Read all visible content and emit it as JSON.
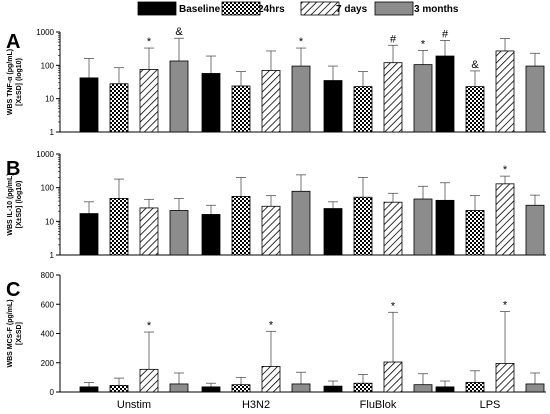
{
  "legend": [
    {
      "label": "Baseline",
      "pattern": "solid-black"
    },
    {
      "label": "24hrs",
      "pattern": "checker"
    },
    {
      "label": "7 days",
      "pattern": "hatch"
    },
    {
      "label": "3 months",
      "pattern": "solid-gray"
    }
  ],
  "colors": {
    "baseline": "#000000",
    "three_months": "#8c8c8c",
    "hatch": "#000000",
    "checker": "#000000"
  },
  "chart_data": [
    {
      "panel": "A",
      "type": "bar",
      "ylabel_lines": [
        "WBS TNF-α (pg/mL)",
        "[X±SD] (log10)"
      ],
      "yscale": "log",
      "ylim": [
        1,
        1000
      ],
      "yticks": [
        "1",
        "10",
        "100",
        "1000"
      ],
      "categories": [
        "Unstim",
        "H3N2",
        "FluBlok",
        "LPS"
      ],
      "series": [
        {
          "name": "Baseline",
          "values": [
            42,
            57,
            35,
            190
          ],
          "errors": [
            160,
            190,
            95,
            560
          ]
        },
        {
          "name": "24hrs",
          "values": [
            28,
            24,
            23,
            23
          ],
          "errors": [
            85,
            65,
            65,
            68
          ]
        },
        {
          "name": "7 days",
          "values": [
            75,
            70,
            120,
            270
          ],
          "errors": [
            330,
            270,
            400,
            640
          ]
        },
        {
          "name": "3 months",
          "values": [
            135,
            95,
            105,
            95
          ],
          "errors": [
            650,
            330,
            280,
            230
          ]
        }
      ],
      "annotations": [
        {
          "category": "Unstim",
          "series": "7 days",
          "text": "*"
        },
        {
          "category": "Unstim",
          "series": "3 months",
          "text": "&"
        },
        {
          "category": "H3N2",
          "series": "3 months",
          "text": "*"
        },
        {
          "category": "FluBlok",
          "series": "7 days",
          "text": "#"
        },
        {
          "category": "FluBlok",
          "series": "3 months",
          "text": "*"
        },
        {
          "category": "LPS",
          "series": "Baseline",
          "text": "#"
        },
        {
          "category": "LPS",
          "series": "24hrs",
          "text": "&"
        }
      ]
    },
    {
      "panel": "B",
      "type": "bar",
      "ylabel_lines": [
        "WBS IL-10 (pg/mL)",
        "[X±SD] (log10)"
      ],
      "yscale": "log",
      "ylim": [
        1,
        1000
      ],
      "yticks": [
        "1",
        "10",
        "100",
        "1000"
      ],
      "categories": [
        "Unstim",
        "H3N2",
        "FluBlok",
        "LPS"
      ],
      "series": [
        {
          "name": "Baseline",
          "values": [
            17,
            16,
            24,
            42
          ],
          "errors": [
            38,
            30,
            38,
            140
          ]
        },
        {
          "name": "24hrs",
          "values": [
            48,
            55,
            52,
            21
          ],
          "errors": [
            180,
            200,
            200,
            58
          ]
        },
        {
          "name": "7 days",
          "values": [
            25,
            28,
            37,
            130
          ],
          "errors": [
            45,
            58,
            68,
            220
          ]
        },
        {
          "name": "3 months",
          "values": [
            21,
            78,
            46,
            30
          ],
          "errors": [
            48,
            240,
            110,
            60
          ]
        }
      ],
      "annotations": [
        {
          "category": "LPS",
          "series": "7 days",
          "text": "*"
        }
      ]
    },
    {
      "panel": "C",
      "type": "bar",
      "ylabel_lines": [
        "WBS MCS-F (pg/mL)",
        "[X±SD]"
      ],
      "yscale": "linear",
      "ylim": [
        0,
        800
      ],
      "yticks": [
        "0",
        "200",
        "400",
        "600",
        "800"
      ],
      "categories": [
        "Unstim",
        "H3N2",
        "FluBlok",
        "LPS"
      ],
      "series": [
        {
          "name": "Baseline",
          "values": [
            35,
            35,
            40,
            35
          ],
          "errors": [
            65,
            60,
            75,
            75
          ]
        },
        {
          "name": "24hrs",
          "values": [
            45,
            50,
            60,
            65
          ],
          "errors": [
            95,
            100,
            120,
            145
          ]
        },
        {
          "name": "7 days",
          "values": [
            155,
            175,
            205,
            195
          ],
          "errors": [
            410,
            415,
            545,
            550
          ]
        },
        {
          "name": "3 months",
          "values": [
            55,
            55,
            50,
            55
          ],
          "errors": [
            130,
            135,
            125,
            130
          ]
        }
      ],
      "annotations": [
        {
          "category": "Unstim",
          "series": "7 days",
          "text": "*"
        },
        {
          "category": "H3N2",
          "series": "7 days",
          "text": "*"
        },
        {
          "category": "FluBlok",
          "series": "7 days",
          "text": "*"
        },
        {
          "category": "LPS",
          "series": "7 days",
          "text": "*"
        }
      ]
    }
  ]
}
